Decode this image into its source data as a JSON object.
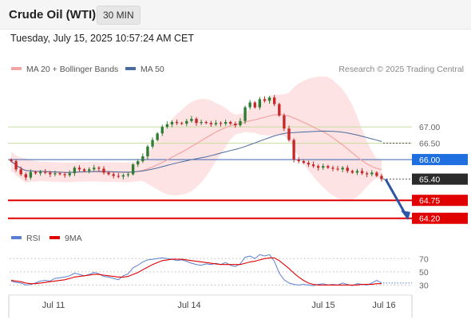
{
  "header": {
    "title": "Crude Oil (WTI)",
    "interval": "30 MIN"
  },
  "datetime": "Tuesday, July 15, 2025 10:57:24 AM CET",
  "copyright": "Research © 2025 Trading Central",
  "colors": {
    "bull": "#2e7d32",
    "bear": "#c62828",
    "bollinger_fill": "#fde0e0",
    "ma20": "#f3a4a4",
    "ma50": "#4a6b9e",
    "pivot": "#3a65b5",
    "resistance": "#c8dca0",
    "support": "#e00000",
    "rsi": "#5b7fd1",
    "rsi_ma": "#e00000",
    "arrow": "#2c55a6"
  },
  "chart_data": [
    {
      "type": "candlestick",
      "legend": [
        {
          "name": "MA 20 + Bollinger Bands",
          "color": "#f3a4a4"
        },
        {
          "name": "MA 50",
          "color": "#4a6b9e"
        }
      ],
      "x_ticks": [
        "Jul 11",
        "Jul 14",
        "Jul 15",
        "Jul 16"
      ],
      "ylim": [
        63.9,
        68.25
      ],
      "levels": [
        {
          "value": 67.0,
          "label": "67.00",
          "kind": "resistance"
        },
        {
          "value": 66.5,
          "label": "66.50",
          "kind": "resistance"
        },
        {
          "value": 66.0,
          "label": "66.00",
          "kind": "pivot"
        },
        {
          "value": 64.75,
          "label": "64.75",
          "kind": "support"
        },
        {
          "value": 64.2,
          "label": "64.20",
          "kind": "support"
        }
      ],
      "last_price": {
        "value": 65.4,
        "label": "65.40"
      },
      "close": [
        65.95,
        65.7,
        65.55,
        65.45,
        65.62,
        65.58,
        65.62,
        65.6,
        65.55,
        65.58,
        65.55,
        65.52,
        65.58,
        65.75,
        65.7,
        65.65,
        65.7,
        65.75,
        65.72,
        65.6,
        65.55,
        65.5,
        65.48,
        65.52,
        65.55,
        65.85,
        65.95,
        66.1,
        66.4,
        66.6,
        66.8,
        67.0,
        67.08,
        67.15,
        67.12,
        67.1,
        67.18,
        67.25,
        67.12,
        67.15,
        67.12,
        67.08,
        67.12,
        67.1,
        67.15,
        67.1,
        67.05,
        67.18,
        67.6,
        67.75,
        67.6,
        67.85,
        67.8,
        67.9,
        67.7,
        67.35,
        66.95,
        66.6,
        66.0,
        65.95,
        65.9,
        65.85,
        65.8,
        65.75,
        65.8,
        65.75,
        65.72,
        65.7,
        65.75,
        65.65,
        65.6,
        65.65,
        65.58,
        65.55,
        65.6,
        65.5,
        65.4
      ],
      "rsi": {
        "ylim": [
          22,
          80
        ],
        "levels": [
          70,
          50,
          30
        ],
        "series": [
          {
            "name": "RSI",
            "values": [
              36,
              34,
              33,
              30,
              31,
              33,
              36,
              37,
              36,
              40,
              41,
              42,
              44,
              48,
              46,
              44,
              46,
              49,
              47,
              43,
              42,
              40,
              38,
              44,
              47,
              56,
              60,
              65,
              68,
              69,
              70,
              71,
              70,
              69,
              67,
              68,
              66,
              63,
              61,
              60,
              62,
              61,
              63,
              61,
              64,
              60,
              58,
              62,
              72,
              74,
              70,
              76,
              74,
              76,
              66,
              48,
              38,
              33,
              31,
              30,
              31,
              30,
              29,
              31,
              32,
              30,
              31,
              30,
              33,
              31,
              29,
              32,
              31,
              30,
              33,
              37,
              33
            ]
          },
          {
            "name": "9MA",
            "values": [
              37,
              36,
              35,
              33,
              32,
              32,
              33,
              34,
              35,
              36,
              37,
              38,
              40,
              42,
              43,
              44,
              45,
              46,
              46,
              45,
              44,
              43,
              42,
              42,
              43,
              46,
              49,
              53,
              57,
              61,
              64,
              67,
              68,
              69,
              69,
              69,
              68,
              67,
              66,
              65,
              64,
              63,
              62,
              61,
              61,
              61,
              61,
              61,
              63,
              65,
              66,
              68,
              70,
              71,
              71,
              67,
              61,
              55,
              48,
              42,
              37,
              33,
              31,
              30,
              30,
              30,
              30,
              30,
              30,
              30,
              30,
              30,
              31,
              31,
              31,
              32,
              32
            ]
          }
        ]
      }
    }
  ]
}
